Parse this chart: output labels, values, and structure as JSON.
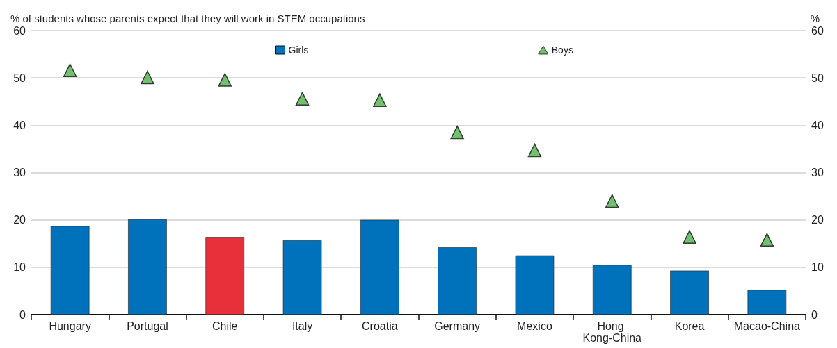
{
  "chart_data": {
    "type": "bar",
    "ylabel": "% of students whose parents expect that they will work in STEM occupations",
    "y2label": "%",
    "categories": [
      "Hungary",
      "Portugal",
      "Chile",
      "Italy",
      "Croatia",
      "Germany",
      "Mexico",
      "Hong Kong-China",
      "Korea",
      "Macao-China"
    ],
    "series": [
      {
        "name": "Girls",
        "color": "#0072bc",
        "colors": [
          "#0072bc",
          "#0072bc",
          "#e8303a",
          "#0072bc",
          "#0072bc",
          "#0072bc",
          "#0072bc",
          "#0072bc",
          "#0072bc",
          "#0072bc"
        ],
        "values": [
          18.7,
          20.1,
          16.4,
          15.7,
          20.0,
          14.2,
          12.5,
          10.5,
          9.3,
          5.2
        ]
      },
      {
        "name": "Boys",
        "type": "scatter",
        "marker": "triangle",
        "color": "#4db04a",
        "values": [
          51.6,
          50.1,
          49.6,
          45.6,
          45.3,
          38.5,
          34.7,
          24.0,
          16.4,
          15.8
        ]
      }
    ],
    "ylim": [
      0,
      60
    ],
    "yticks": [
      0,
      10,
      20,
      30,
      40,
      50,
      60
    ],
    "y2lim": [
      0,
      60
    ],
    "y2ticks": [
      0,
      10,
      20,
      30,
      40,
      50,
      60
    ],
    "grid": "y",
    "legend": "top"
  }
}
